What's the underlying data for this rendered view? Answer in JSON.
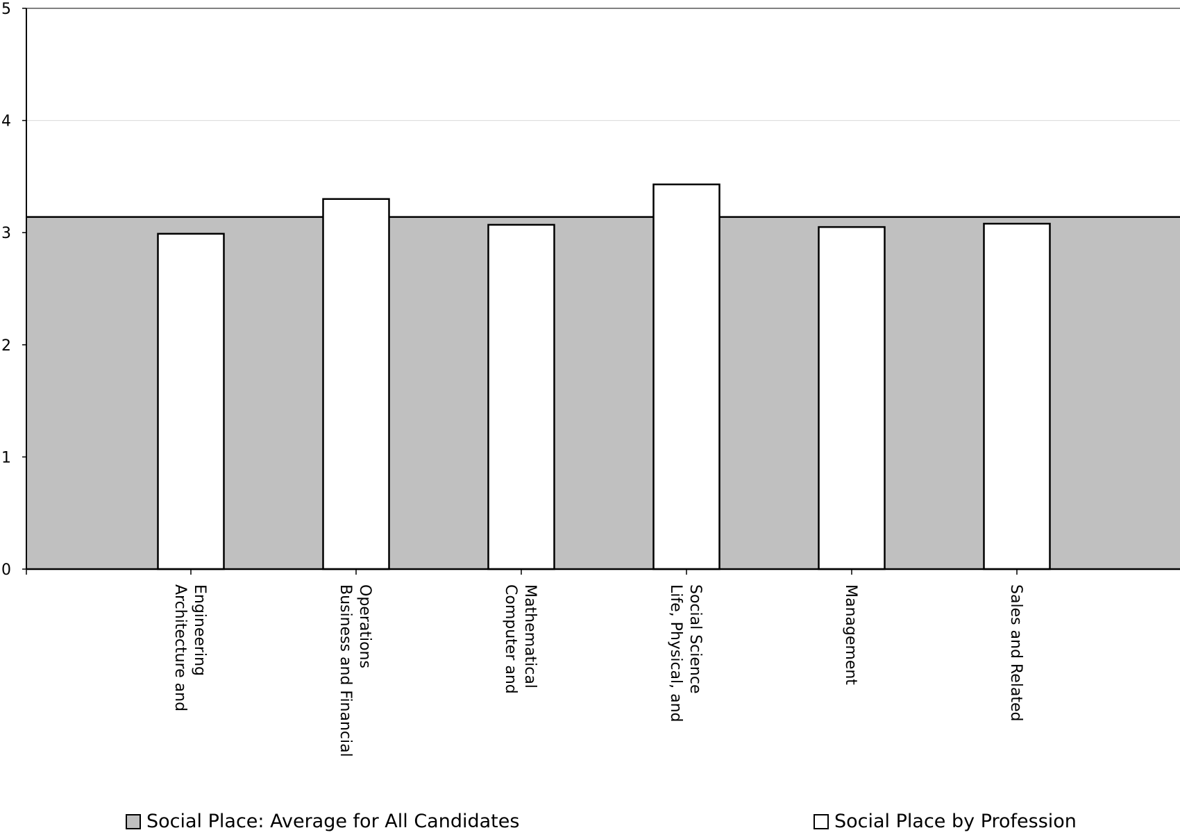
{
  "chart_data": {
    "type": "bar",
    "categories": [
      "Architecture and Engineering",
      "Business and Financial Operations",
      "Computer and Mathematical",
      "Life, Physical, and Social Science",
      "Management",
      "Sales and Related"
    ],
    "series": [
      {
        "name": "Social Place by Profession",
        "values": [
          2.99,
          3.3,
          3.07,
          3.43,
          3.05,
          3.08
        ]
      },
      {
        "name": "Social Place: Average for All Candidates",
        "values": [
          3.14,
          3.14,
          3.14,
          3.14,
          3.14,
          3.14
        ],
        "style": "area"
      }
    ],
    "ylim": [
      0,
      5
    ],
    "yticks": [
      "0",
      "1",
      "2",
      "3",
      "4",
      "5"
    ],
    "grid": true,
    "legend_position": "bottom",
    "colors": {
      "average_fill": "#c0c0c0",
      "bar_fill": "#ffffff",
      "stroke": "#000000",
      "grid": "#d9d9d9"
    }
  },
  "legend": {
    "average_label": "Social Place: Average for All Candidates",
    "profession_label": "Social Place by Profession"
  }
}
